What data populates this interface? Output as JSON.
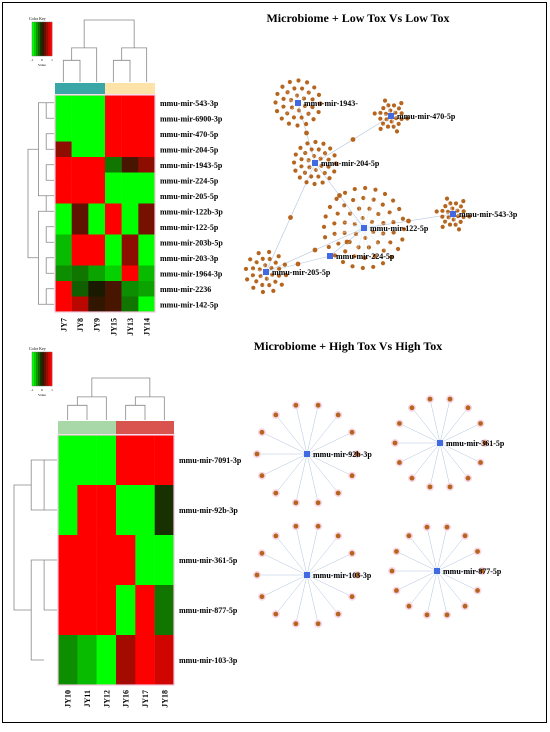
{
  "colors": {
    "low": "#00ff00",
    "mid": "#1a1a00",
    "high": "#ff0000",
    "node": "#b5651d",
    "hub": "#4169e1",
    "edge": "#b0c4de",
    "top_low_bar": "#3aa6a6",
    "top_high_bar": "#fde3a7",
    "bot_low_bar": "#a8d8a8",
    "bot_high_bar": "#d9534f"
  },
  "panels": [
    {
      "title": "Microbiome + Low Tox Vs Low Tox",
      "color_key": {
        "label": "Color Key",
        "ticks": [
          "-1",
          "0",
          "1"
        ],
        "axis": "Value"
      },
      "columns": [
        "JY7",
        "JY8",
        "JY9",
        "JY15",
        "JY13",
        "JY14"
      ],
      "col_groups": [
        {
          "color": "top_low_bar",
          "span": 3
        },
        {
          "color": "top_high_bar",
          "span": 3
        }
      ],
      "rows": [
        {
          "name": "mmu-mir-543-3p",
          "values": [
            -1,
            -1,
            -1,
            1,
            1,
            1
          ]
        },
        {
          "name": "mmu-mir-6900-3p",
          "values": [
            -1,
            -1,
            -1,
            1,
            1,
            1
          ]
        },
        {
          "name": "mmu-mir-470-5p",
          "values": [
            -1,
            -1,
            -1,
            1,
            1,
            1
          ]
        },
        {
          "name": "mmu-mir-204-5p",
          "values": [
            0.5,
            -1,
            -1,
            1,
            1,
            1
          ]
        },
        {
          "name": "mmu-mir-1943-5p",
          "values": [
            1,
            1,
            1,
            -0.4,
            0.2,
            0.5
          ]
        },
        {
          "name": "mmu-mir-224-5p",
          "values": [
            1,
            1,
            1,
            -1,
            -1,
            -1
          ]
        },
        {
          "name": "mmu-mir-205-5p",
          "values": [
            1,
            1,
            1,
            -1,
            -1,
            -1
          ]
        },
        {
          "name": "mmu-mir-122b-3p",
          "values": [
            -1,
            0.3,
            -1,
            1,
            -1,
            0.4
          ]
        },
        {
          "name": "mmu-mir-122-5p",
          "values": [
            -1,
            0.3,
            -1,
            1,
            -1,
            0.4
          ]
        },
        {
          "name": "mmu-mir-203b-5p",
          "values": [
            -0.7,
            1,
            1,
            -1,
            0.5,
            -1
          ]
        },
        {
          "name": "mmu-mir-203-3p",
          "values": [
            -0.7,
            1,
            1,
            -1,
            0.5,
            -1
          ]
        },
        {
          "name": "mmu-mir-1964-3p",
          "values": [
            -0.5,
            -0.4,
            -0.6,
            -0.8,
            1,
            -0.7
          ]
        },
        {
          "name": "mmu-mir-2236",
          "values": [
            1,
            -0.3,
            0,
            0.2,
            -0.5,
            -0.6
          ]
        },
        {
          "name": "mmu-mir-142-5p",
          "values": [
            1,
            0.7,
            0.1,
            0.2,
            -0.4,
            -1
          ]
        }
      ],
      "network": [
        {
          "label": "mmu-mir-1943-",
          "leaves": 34
        },
        {
          "label": "mmu-mir-470-5p",
          "leaves": 24
        },
        {
          "label": "mmu-mir-204-5p",
          "leaves": 34
        },
        {
          "label": "mmu-mir-543-3p",
          "leaves": 24
        },
        {
          "label": "mmu-mir-122-5p",
          "leaves": 60
        },
        {
          "label": "mmu-mir-224-5p",
          "leaves": 0
        },
        {
          "label": "mmu-mir-205-5p",
          "leaves": 30
        }
      ]
    },
    {
      "title": "Microbiome + High Tox Vs High Tox",
      "color_key": {
        "label": "Color Key",
        "ticks": [
          "-1",
          "0",
          "1"
        ],
        "axis": "Value"
      },
      "columns": [
        "JY10",
        "JY11",
        "JY12",
        "JY16",
        "JY17",
        "JY18"
      ],
      "col_groups": [
        {
          "color": "bot_low_bar",
          "span": 3
        },
        {
          "color": "bot_high_bar",
          "span": 3
        }
      ],
      "rows": [
        {
          "name": "mmu-mir-7091-3p",
          "values": [
            -1,
            -1,
            -1,
            1,
            1,
            1
          ]
        },
        {
          "name": "mmu-mir-92b-3p",
          "values": [
            -1,
            1,
            1,
            -1,
            -1,
            -0.1
          ]
        },
        {
          "name": "mmu-mir-361-5p",
          "values": [
            1,
            1,
            1,
            1,
            -1,
            -1
          ]
        },
        {
          "name": "mmu-mir-877-5p",
          "values": [
            1,
            1,
            1,
            -1,
            1,
            -0.4
          ]
        },
        {
          "name": "mmu-mir-103-3p",
          "values": [
            -0.5,
            -0.7,
            -1,
            0.6,
            1,
            0.8
          ]
        }
      ],
      "network": [
        {
          "label": "mmu-mir-92b-3p",
          "leaves": 14
        },
        {
          "label": "mmu-mir-361-5p",
          "leaves": 14
        },
        {
          "label": "mmu-mir-103-3p",
          "leaves": 14
        },
        {
          "label": "mmu-mir-877-5p",
          "leaves": 14
        }
      ]
    }
  ]
}
